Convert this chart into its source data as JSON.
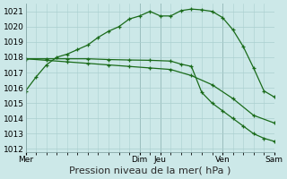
{
  "line1_x": [
    0,
    0.5,
    1,
    1.5,
    2,
    2.5,
    3,
    3.5,
    4,
    4.5,
    5,
    5.5,
    6,
    6.5,
    7,
    7.5,
    8,
    8.5,
    9,
    9.5,
    10,
    10.5,
    11,
    11.5,
    12
  ],
  "line1_y": [
    1015.8,
    1016.7,
    1017.5,
    1018.0,
    1018.2,
    1018.5,
    1018.8,
    1019.3,
    1019.7,
    1020.0,
    1020.5,
    1020.7,
    1021.0,
    1020.7,
    1020.7,
    1021.05,
    1021.15,
    1021.1,
    1021.0,
    1020.6,
    1019.8,
    1018.7,
    1017.3,
    1015.8,
    1015.4
  ],
  "line2_x": [
    0,
    1,
    2,
    3,
    4,
    5,
    6,
    7,
    7.5,
    8,
    8.5,
    9,
    9.5,
    10,
    10.5,
    11,
    11.5,
    12
  ],
  "line2_y": [
    1017.9,
    1017.9,
    1017.9,
    1017.9,
    1017.85,
    1017.82,
    1017.8,
    1017.75,
    1017.55,
    1017.4,
    1015.7,
    1015.0,
    1014.5,
    1014.0,
    1013.5,
    1013.0,
    1012.7,
    1012.5
  ],
  "line3_x": [
    0,
    1,
    2,
    3,
    4,
    5,
    6,
    7,
    8,
    9,
    10,
    11,
    12
  ],
  "line3_y": [
    1017.9,
    1017.8,
    1017.7,
    1017.6,
    1017.5,
    1017.4,
    1017.3,
    1017.2,
    1016.8,
    1016.2,
    1015.3,
    1014.2,
    1013.7
  ],
  "line_color": "#1a6b1a",
  "bg_color": "#cce8e8",
  "grid_color": "#aacfcf",
  "xlabel": "Pression niveau de la mer( hPa )",
  "day_labels": [
    "Mer",
    "Dim",
    "Jeu",
    "Ven",
    "Sam"
  ],
  "day_positions": [
    0,
    5.5,
    6.5,
    9.5,
    12
  ],
  "vline_positions": [
    5.5,
    6.5,
    9.5,
    12
  ],
  "ytick_min": 1012,
  "ytick_max": 1021,
  "ytick_step": 1,
  "xlim": [
    0,
    12
  ],
  "ylim": [
    1011.8,
    1021.5
  ],
  "xlabel_fontsize": 8,
  "tick_fontsize": 6.5,
  "marker_size": 3.5
}
